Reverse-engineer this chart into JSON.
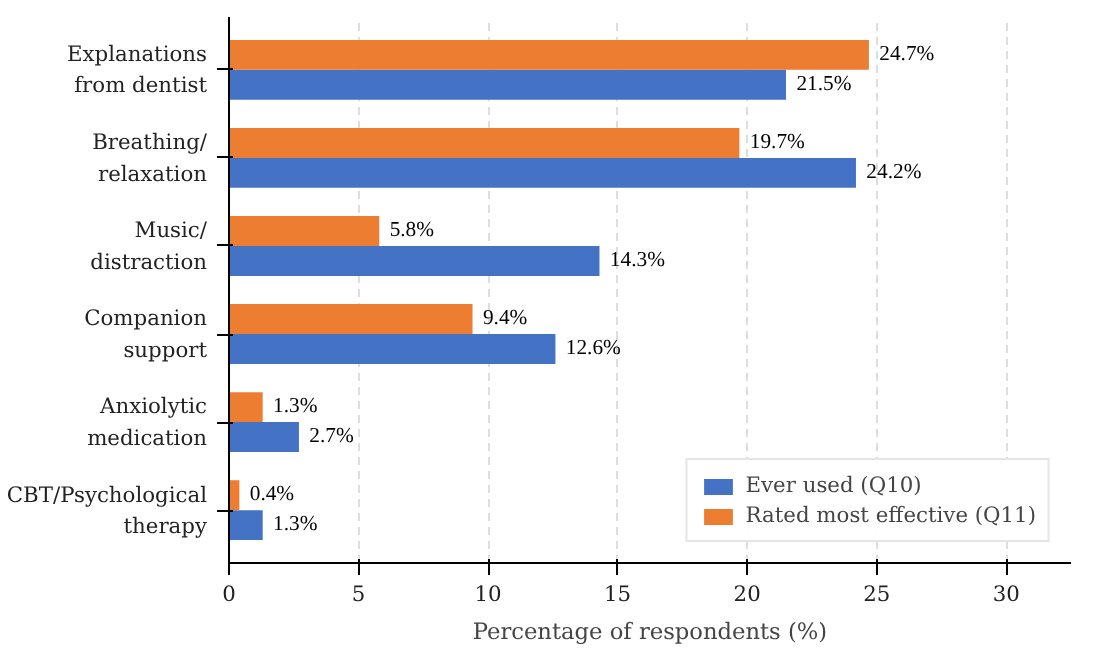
{
  "chart_data": {
    "type": "bar",
    "orientation": "horizontal",
    "xlabel": "Percentage of respondents (%)",
    "categories": [
      "Explanations\nfrom dentist",
      "Breathing/\nrelaxation",
      "Music/\ndistraction",
      "Companion\nsupport",
      "Anxiolytic\nmedication",
      "CBT/Psychological\ntherapy"
    ],
    "series": [
      {
        "name": "Ever used (Q10)",
        "color": "#4472c4",
        "values": [
          21.5,
          24.2,
          14.3,
          12.6,
          2.7,
          1.3
        ],
        "value_labels": [
          "21.5%",
          "24.2%",
          "14.3%",
          "12.6%",
          "2.7%",
          "1.3%"
        ]
      },
      {
        "name": "Rated most effective (Q11)",
        "color": "#ed7d31",
        "values": [
          24.7,
          19.7,
          5.8,
          9.4,
          1.3,
          0.4
        ],
        "value_labels": [
          "24.7%",
          "19.7%",
          "5.8%",
          "9.4%",
          "1.3%",
          "0.4%"
        ]
      }
    ],
    "xlim": [
      0,
      32.5
    ],
    "xticks": [
      0,
      5,
      10,
      15,
      20,
      25,
      30
    ],
    "grid": "x",
    "legend": "bottom right"
  }
}
